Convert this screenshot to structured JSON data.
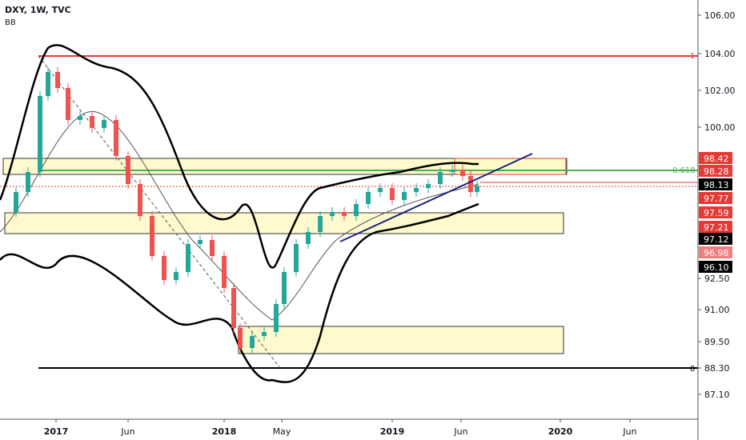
{
  "header": {
    "symbol": "DXY, 1W, TVC",
    "indicator": "BB"
  },
  "chart_data": {
    "type": "candlestick",
    "symbol": "DXY",
    "timeframe": "1W",
    "source": "TVC",
    "price_axis_ticks": [
      106.0,
      104.0,
      102.0,
      100.0,
      92.5,
      91.0,
      89.5,
      88.3,
      87.1
    ],
    "time_axis_labels": [
      "2017",
      "Jun",
      "2018",
      "May",
      "2019",
      "Jun",
      "2020",
      "Jun"
    ],
    "price_labels": [
      {
        "text": "98.42",
        "bg": "#e53935",
        "fg": "#ffffff"
      },
      {
        "text": "98.28",
        "bg": "#e53935",
        "fg": "#ffffff"
      },
      {
        "text": "98.13",
        "bg": "#000000",
        "fg": "#ffffff"
      },
      {
        "text": "97.77",
        "bg": "#e53935",
        "fg": "#ffffff"
      },
      {
        "text": "97.59",
        "bg": "#e53935",
        "fg": "#ffffff"
      },
      {
        "text": "97.21",
        "bg": "#e53935",
        "fg": "#ffffff"
      },
      {
        "text": "97.12",
        "bg": "#000000",
        "fg": "#ffffff"
      },
      {
        "text": "96.98",
        "bg": "#ef7f7f",
        "fg": "#ffffff"
      },
      {
        "text": "96.10",
        "bg": "#000000",
        "fg": "#ffffff"
      }
    ],
    "fib_labels": [
      {
        "text": "1",
        "color": "#e53935"
      },
      {
        "text": "0.618",
        "color": "#4caf50"
      },
      {
        "text": "0",
        "color": "#000000"
      }
    ],
    "colors": {
      "up": "#26a69a",
      "down": "#ef5350",
      "bands": "#000000",
      "basis": "#555555",
      "zone": "#fff9c4",
      "resistance": "#e53935",
      "fib618": "#4caf50",
      "trend": "#1a237e"
    }
  }
}
